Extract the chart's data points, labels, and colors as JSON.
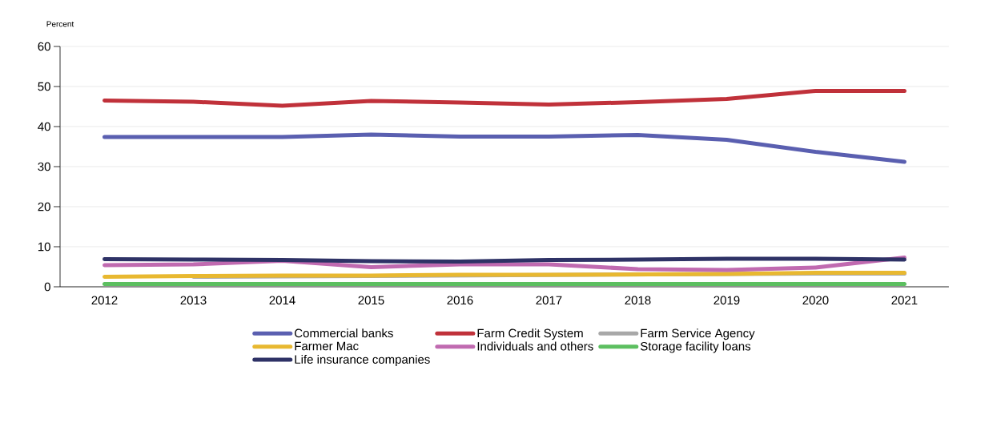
{
  "chart_data": {
    "type": "line",
    "ylabel": "Percent",
    "categories": [
      "2012",
      "2013",
      "2014",
      "2015",
      "2016",
      "2017",
      "2018",
      "2019",
      "2020",
      "2021"
    ],
    "ylim": [
      0,
      60
    ],
    "yticks": [
      0,
      10,
      20,
      30,
      40,
      50,
      60
    ],
    "grid": "y",
    "legend": "bottom",
    "line_style": "solid",
    "marker": "none",
    "series": [
      {
        "name": "Commercial banks",
        "color": "#5a5fb0",
        "values": [
          37.4,
          37.4,
          37.4,
          38.0,
          37.5,
          37.5,
          37.9,
          36.7,
          33.7,
          31.2
        ]
      },
      {
        "name": "Farm Credit System",
        "color": "#c0313a",
        "values": [
          46.5,
          46.2,
          45.2,
          46.4,
          46.0,
          45.5,
          46.1,
          46.9,
          48.9,
          48.9
        ]
      },
      {
        "name": "Farm Service Agency",
        "color": "#a8a8a8",
        "values": [
          null,
          2.5,
          2.6,
          null,
          null,
          null,
          null,
          null,
          3.3,
          3.3
        ]
      },
      {
        "name": "Farmer Mac",
        "color": "#e8b830",
        "values": [
          2.5,
          2.7,
          2.8,
          2.8,
          3.0,
          3.0,
          3.1,
          3.2,
          3.5,
          3.5
        ]
      },
      {
        "name": "Individuals and others",
        "color": "#c06ab0",
        "values": [
          5.4,
          5.6,
          6.5,
          4.9,
          5.6,
          5.6,
          4.4,
          4.2,
          4.8,
          7.3
        ]
      },
      {
        "name": "Storage facility loans",
        "color": "#5cbf60",
        "values": [
          0.7,
          0.7,
          0.7,
          0.7,
          0.7,
          0.7,
          0.7,
          0.7,
          0.7,
          0.7
        ]
      },
      {
        "name": "Life insurance companies",
        "color": "#2e3266",
        "values": [
          6.9,
          6.8,
          6.7,
          6.4,
          6.3,
          6.7,
          6.8,
          7.0,
          7.0,
          6.8
        ]
      }
    ]
  }
}
